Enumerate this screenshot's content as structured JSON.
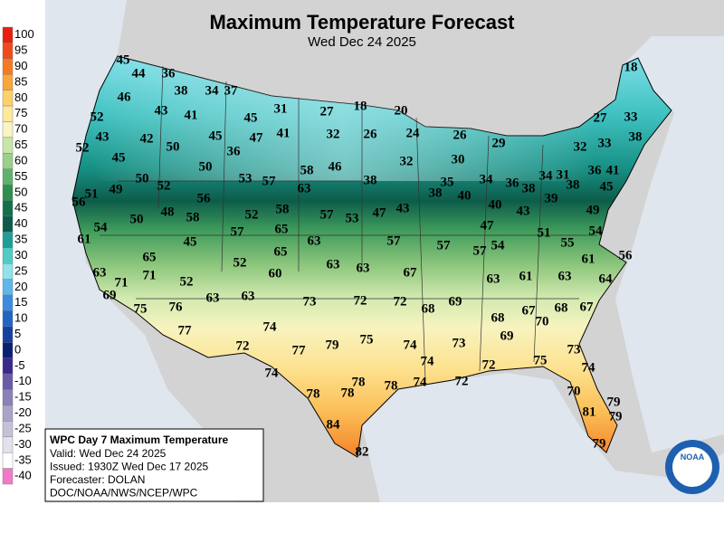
{
  "header": {
    "title": "Maximum Temperature Forecast",
    "subtitle": "Wed Dec 24 2025"
  },
  "legend": {
    "values": [
      100,
      95,
      90,
      85,
      80,
      75,
      70,
      65,
      60,
      55,
      50,
      45,
      40,
      35,
      30,
      25,
      20,
      15,
      10,
      5,
      0,
      -5,
      -10,
      -15,
      -20,
      -25,
      -30,
      -35,
      -40
    ],
    "colors": [
      "#e8200e",
      "#f04a1a",
      "#f57a23",
      "#f9a63c",
      "#fcd06a",
      "#fde99a",
      "#f8f4c4",
      "#c8e6a8",
      "#9ccf8a",
      "#5fb26b",
      "#2e8f4f",
      "#12704a",
      "#0b5a4c",
      "#1f9e97",
      "#51cbc4",
      "#8fe3ea",
      "#5fb6ea",
      "#3b8ce0",
      "#2164c4",
      "#1640a0",
      "#0b1f73",
      "#3a2a8c",
      "#6b5ba8",
      "#8a82b6",
      "#a7a4c7",
      "#c3c2d8",
      "#e2e1ec",
      "#ffffff",
      "#f07ac8"
    ]
  },
  "temperatures": [
    45,
    44,
    36,
    38,
    34,
    37,
    46,
    18,
    52,
    43,
    41,
    45,
    31,
    27,
    18,
    20,
    27,
    33,
    43,
    42,
    50,
    45,
    47,
    41,
    32,
    26,
    24,
    26,
    29,
    32,
    33,
    38,
    52,
    45,
    36,
    58,
    46,
    32,
    30,
    36,
    41,
    50,
    52,
    50,
    53,
    57,
    63,
    38,
    35,
    34,
    36,
    38,
    34,
    31,
    38,
    45,
    51,
    49,
    56,
    56,
    58,
    52,
    57,
    53,
    47,
    43,
    38,
    40,
    40,
    43,
    39,
    49,
    48,
    58,
    50,
    54,
    65,
    57,
    47,
    51,
    54,
    61,
    63,
    57,
    57,
    57,
    54,
    55,
    45,
    65,
    65,
    52,
    63,
    63,
    67,
    61,
    56,
    63,
    71,
    71,
    52,
    60,
    63,
    61,
    63,
    64,
    69,
    63,
    63,
    73,
    72,
    72,
    69,
    75,
    76,
    68,
    68,
    67,
    67,
    70,
    68,
    74,
    77,
    72,
    77,
    79,
    75,
    74,
    73,
    69,
    73,
    74,
    74,
    72,
    75,
    74,
    78,
    78,
    78,
    78,
    74,
    72,
    70,
    79,
    81,
    79,
    84,
    82,
    79
  ],
  "info": {
    "title": "WPC Day 7 Maximum Temperature",
    "lines": [
      "Valid: Wed Dec 24 2025",
      "Issued: 1930Z Wed Dec 17 2025",
      "Forecaster: DOLAN",
      "DOC/NOAA/NWS/NCEP/WPC"
    ]
  },
  "logo": "NOAA"
}
